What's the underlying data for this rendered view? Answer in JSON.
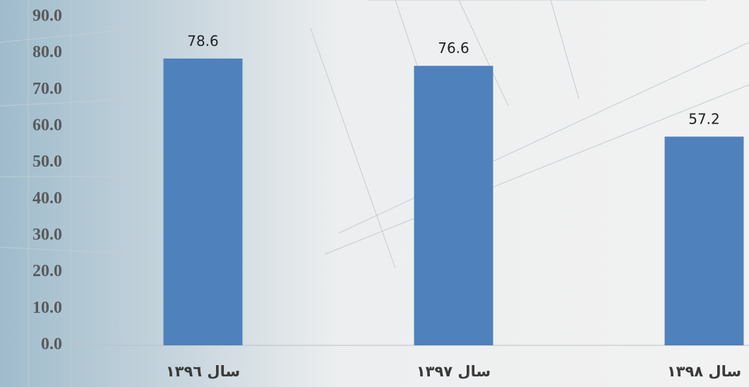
{
  "chart_data": {
    "type": "bar",
    "categories": [
      "سال ١٣٩٦",
      "سال ١٣٩٧",
      "سال ١٣٩٨"
    ],
    "values": [
      78.6,
      76.6,
      57.2
    ],
    "color": "#4f81bd",
    "ylim": [
      0,
      90
    ],
    "yticks": [
      {
        "value": 0,
        "label": "0.0"
      },
      {
        "value": 10,
        "label": "10.0"
      },
      {
        "value": 20,
        "label": "20.0"
      },
      {
        "value": 30,
        "label": "30.0"
      },
      {
        "value": 40,
        "label": "40.0"
      },
      {
        "value": 50,
        "label": "50.0"
      },
      {
        "value": 60,
        "label": "60.0"
      },
      {
        "value": 70,
        "label": "70.0"
      },
      {
        "value": 80,
        "label": "80.0"
      },
      {
        "value": 90,
        "label": "90.0"
      }
    ],
    "grid": false
  }
}
